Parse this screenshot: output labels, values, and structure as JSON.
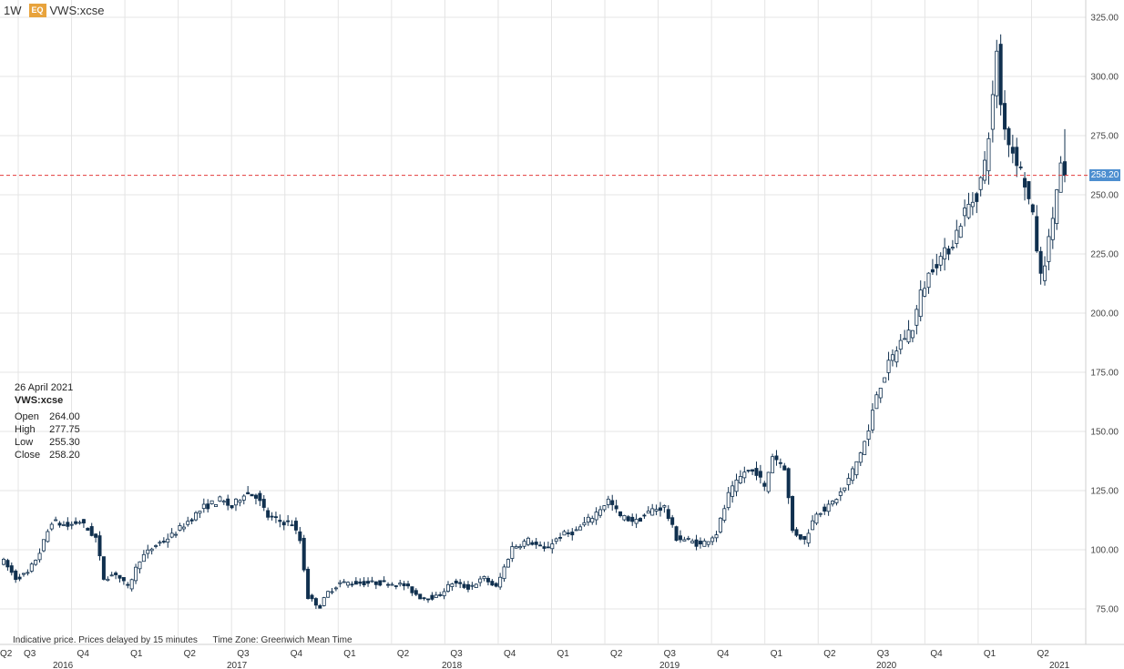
{
  "header": {
    "period": "1W",
    "badge": "EQ",
    "symbol": "VWS:xcse"
  },
  "info": {
    "date": "26 April 2021",
    "symbol": "VWS:xcse",
    "rows": [
      {
        "label": "Open",
        "value": "264.00"
      },
      {
        "label": "High",
        "value": "277.75"
      },
      {
        "label": "Low",
        "value": "255.30"
      },
      {
        "label": "Close",
        "value": "258.20"
      }
    ]
  },
  "footer": {
    "note": "Indicative price. Prices delayed by 15 minutes",
    "timezone": "Time Zone: Greenwich Mean Time"
  },
  "current_price_label": "258.20",
  "colors": {
    "candle": "#10304f",
    "grid": "#e4e4e4",
    "current_line": "#e23b3b",
    "price_box": "#4e8fd0"
  },
  "chart_data": {
    "type": "candlestick",
    "ylim": [
      55,
      330
    ],
    "yticks": [
      "75.00",
      "100.00",
      "125.00",
      "150.00",
      "175.00",
      "200.00",
      "225.00",
      "250.00",
      "275.00",
      "300.00",
      "325.00"
    ],
    "current_price": 258.2,
    "quarters": [
      "Q2",
      "Q3",
      "Q4",
      "Q1",
      "Q2",
      "Q3",
      "Q4",
      "Q1",
      "Q2",
      "Q3",
      "Q4",
      "Q1",
      "Q2",
      "Q3",
      "Q4",
      "Q1",
      "Q2",
      "Q3",
      "Q4",
      "Q1",
      "Q2"
    ],
    "years": [
      "2016",
      "2017",
      "2018",
      "2019",
      "2020",
      "2021"
    ],
    "trend": [
      [
        0,
        95
      ],
      [
        3,
        88
      ],
      [
        6,
        90
      ],
      [
        9,
        99
      ],
      [
        12,
        112
      ],
      [
        16,
        110
      ],
      [
        19,
        112
      ],
      [
        23,
        105
      ],
      [
        25,
        88
      ],
      [
        28,
        90
      ],
      [
        31,
        84
      ],
      [
        34,
        96
      ],
      [
        38,
        102
      ],
      [
        42,
        106
      ],
      [
        46,
        112
      ],
      [
        50,
        118
      ],
      [
        54,
        121
      ],
      [
        57,
        118
      ],
      [
        60,
        124
      ],
      [
        63,
        123
      ],
      [
        66,
        114
      ],
      [
        69,
        112
      ],
      [
        72,
        111
      ],
      [
        74,
        104
      ],
      [
        76,
        80
      ],
      [
        79,
        76
      ],
      [
        81,
        82
      ],
      [
        84,
        86
      ],
      [
        90,
        86
      ],
      [
        96,
        86
      ],
      [
        100,
        85
      ],
      [
        104,
        80
      ],
      [
        108,
        80
      ],
      [
        112,
        86
      ],
      [
        116,
        84
      ],
      [
        120,
        88
      ],
      [
        123,
        84
      ],
      [
        127,
        101
      ],
      [
        131,
        104
      ],
      [
        135,
        100
      ],
      [
        139,
        106
      ],
      [
        143,
        108
      ],
      [
        147,
        114
      ],
      [
        151,
        121
      ],
      [
        154,
        114
      ],
      [
        158,
        112
      ],
      [
        162,
        117
      ],
      [
        165,
        118
      ],
      [
        168,
        105
      ],
      [
        171,
        104
      ],
      [
        174,
        102
      ],
      [
        178,
        107
      ],
      [
        181,
        123
      ],
      [
        185,
        133
      ],
      [
        188,
        133
      ],
      [
        190,
        126
      ],
      [
        192,
        140
      ],
      [
        195,
        135
      ],
      [
        197,
        108
      ],
      [
        200,
        104
      ],
      [
        203,
        116
      ],
      [
        206,
        118
      ],
      [
        210,
        126
      ],
      [
        213,
        137
      ],
      [
        216,
        150
      ],
      [
        218,
        166
      ],
      [
        221,
        178
      ],
      [
        224,
        188
      ],
      [
        227,
        194
      ],
      [
        229,
        208
      ],
      [
        232,
        220
      ],
      [
        235,
        225
      ],
      [
        237,
        230
      ],
      [
        240,
        243
      ],
      [
        243,
        250
      ],
      [
        245,
        263
      ],
      [
        247,
        290
      ],
      [
        248,
        312
      ],
      [
        249,
        288
      ],
      [
        251,
        272
      ],
      [
        253,
        265
      ],
      [
        255,
        255
      ],
      [
        257,
        240
      ],
      [
        259,
        215
      ],
      [
        261,
        230
      ],
      [
        263,
        252
      ],
      [
        264,
        262
      ],
      [
        265,
        258
      ]
    ]
  }
}
